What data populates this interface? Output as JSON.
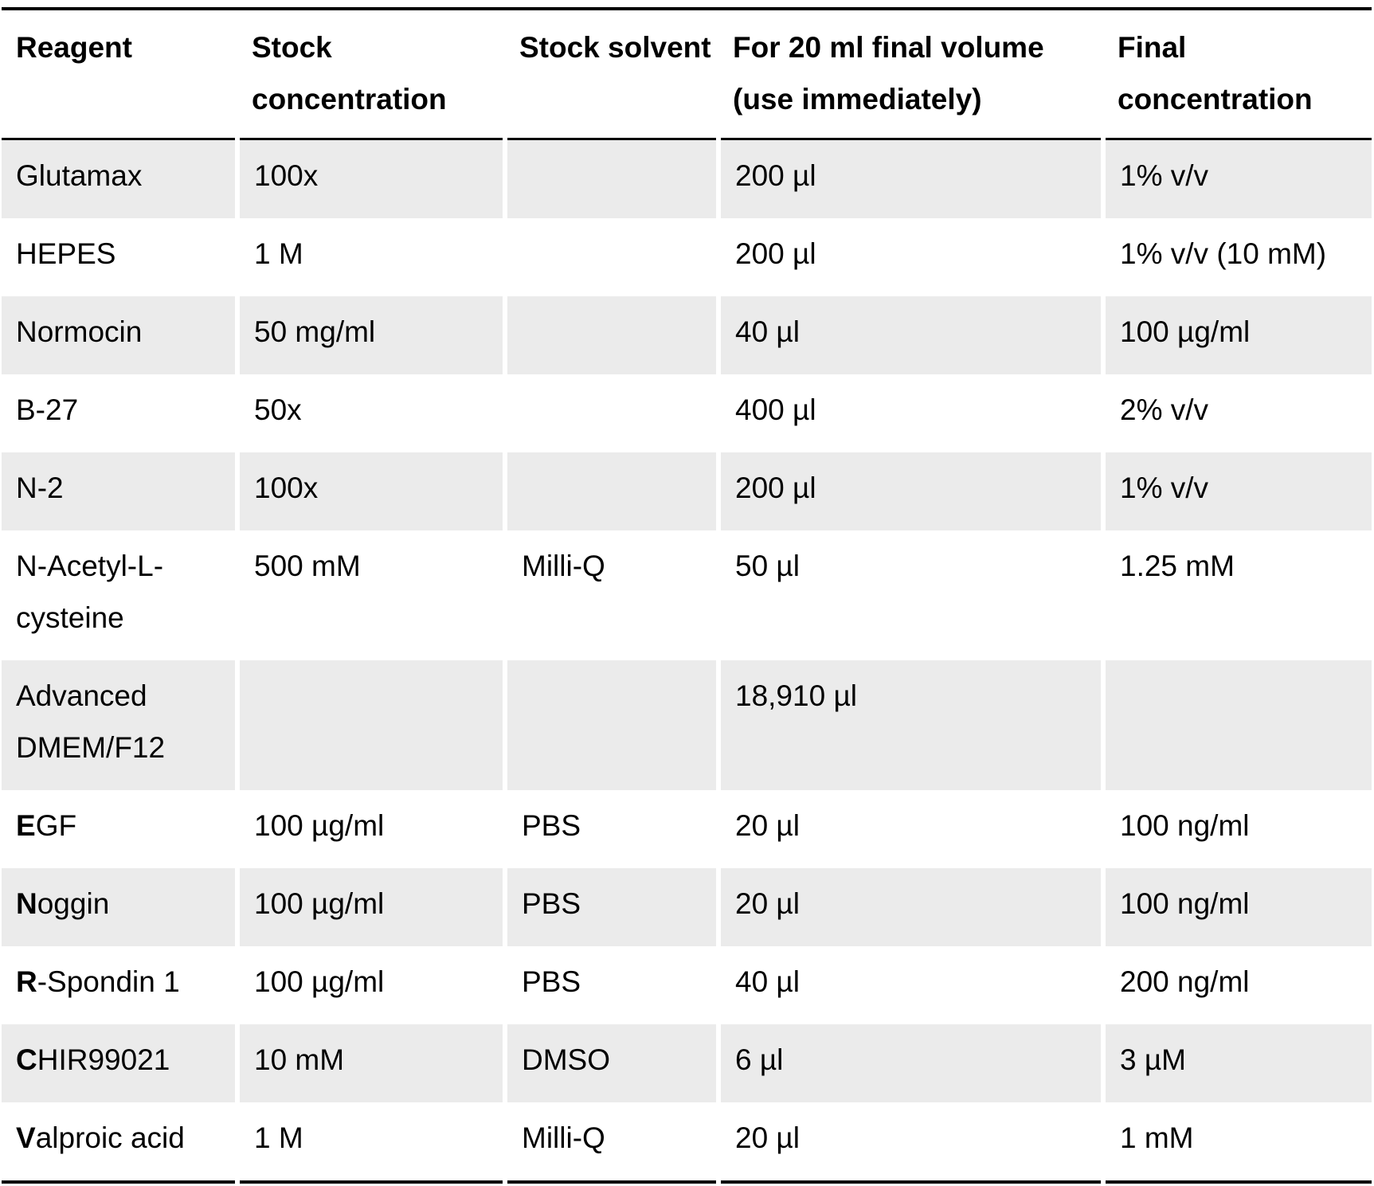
{
  "table": {
    "headers": [
      "Reagent",
      "Stock concentration",
      "Stock solvent",
      "For 20 ml final volume (use immediately)",
      "Final concentration"
    ],
    "rows": [
      {
        "reagent_initial": "",
        "reagent_rest": "Glutamax",
        "stock_concentration": "100x",
        "stock_solvent": "",
        "volume": "200 µl",
        "final_concentration": "1% v/v"
      },
      {
        "reagent_initial": "",
        "reagent_rest": "HEPES",
        "stock_concentration": "1 M",
        "stock_solvent": "",
        "volume": "200 µl",
        "final_concentration": "1% v/v (10 mM)"
      },
      {
        "reagent_initial": "",
        "reagent_rest": "Normocin",
        "stock_concentration": "50 mg/ml",
        "stock_solvent": "",
        "volume": "40 µl",
        "final_concentration": "100 µg/ml"
      },
      {
        "reagent_initial": "",
        "reagent_rest": "B-27",
        "stock_concentration": "50x",
        "stock_solvent": "",
        "volume": "400 µl",
        "final_concentration": "2% v/v"
      },
      {
        "reagent_initial": "",
        "reagent_rest": "N-2",
        "stock_concentration": "100x",
        "stock_solvent": "",
        "volume": "200 µl",
        "final_concentration": "1% v/v"
      },
      {
        "reagent_initial": "",
        "reagent_rest": "N-Acetyl-L-cysteine",
        "stock_concentration": "500 mM",
        "stock_solvent": "Milli-Q",
        "volume": "50 µl",
        "final_concentration": "1.25 mM"
      },
      {
        "reagent_initial": "",
        "reagent_rest": "Advanced DMEM/F12",
        "stock_concentration": "",
        "stock_solvent": "",
        "volume": "18,910 µl",
        "final_concentration": ""
      },
      {
        "reagent_initial": "E",
        "reagent_rest": "GF",
        "stock_concentration": "100 µg/ml",
        "stock_solvent": "PBS",
        "volume": "20 µl",
        "final_concentration": "100 ng/ml"
      },
      {
        "reagent_initial": "N",
        "reagent_rest": "oggin",
        "stock_concentration": "100 µg/ml",
        "stock_solvent": "PBS",
        "volume": "20 µl",
        "final_concentration": "100 ng/ml"
      },
      {
        "reagent_initial": "R",
        "reagent_rest": "-Spondin 1",
        "stock_concentration": "100 µg/ml",
        "stock_solvent": "PBS",
        "volume": "40 µl",
        "final_concentration": "200 ng/ml"
      },
      {
        "reagent_initial": "C",
        "reagent_rest": "HIR99021",
        "stock_concentration": "10 mM",
        "stock_solvent": "DMSO",
        "volume": "6 µl",
        "final_concentration": "3 µM"
      },
      {
        "reagent_initial": "V",
        "reagent_rest": "alproic acid",
        "stock_concentration": "1 M",
        "stock_solvent": "Milli-Q",
        "volume": "20 µl",
        "final_concentration": "1 mM"
      }
    ]
  },
  "colors": {
    "shaded_row": "#ebebeb",
    "plain_row": "#ffffff",
    "rule": "#000000"
  }
}
